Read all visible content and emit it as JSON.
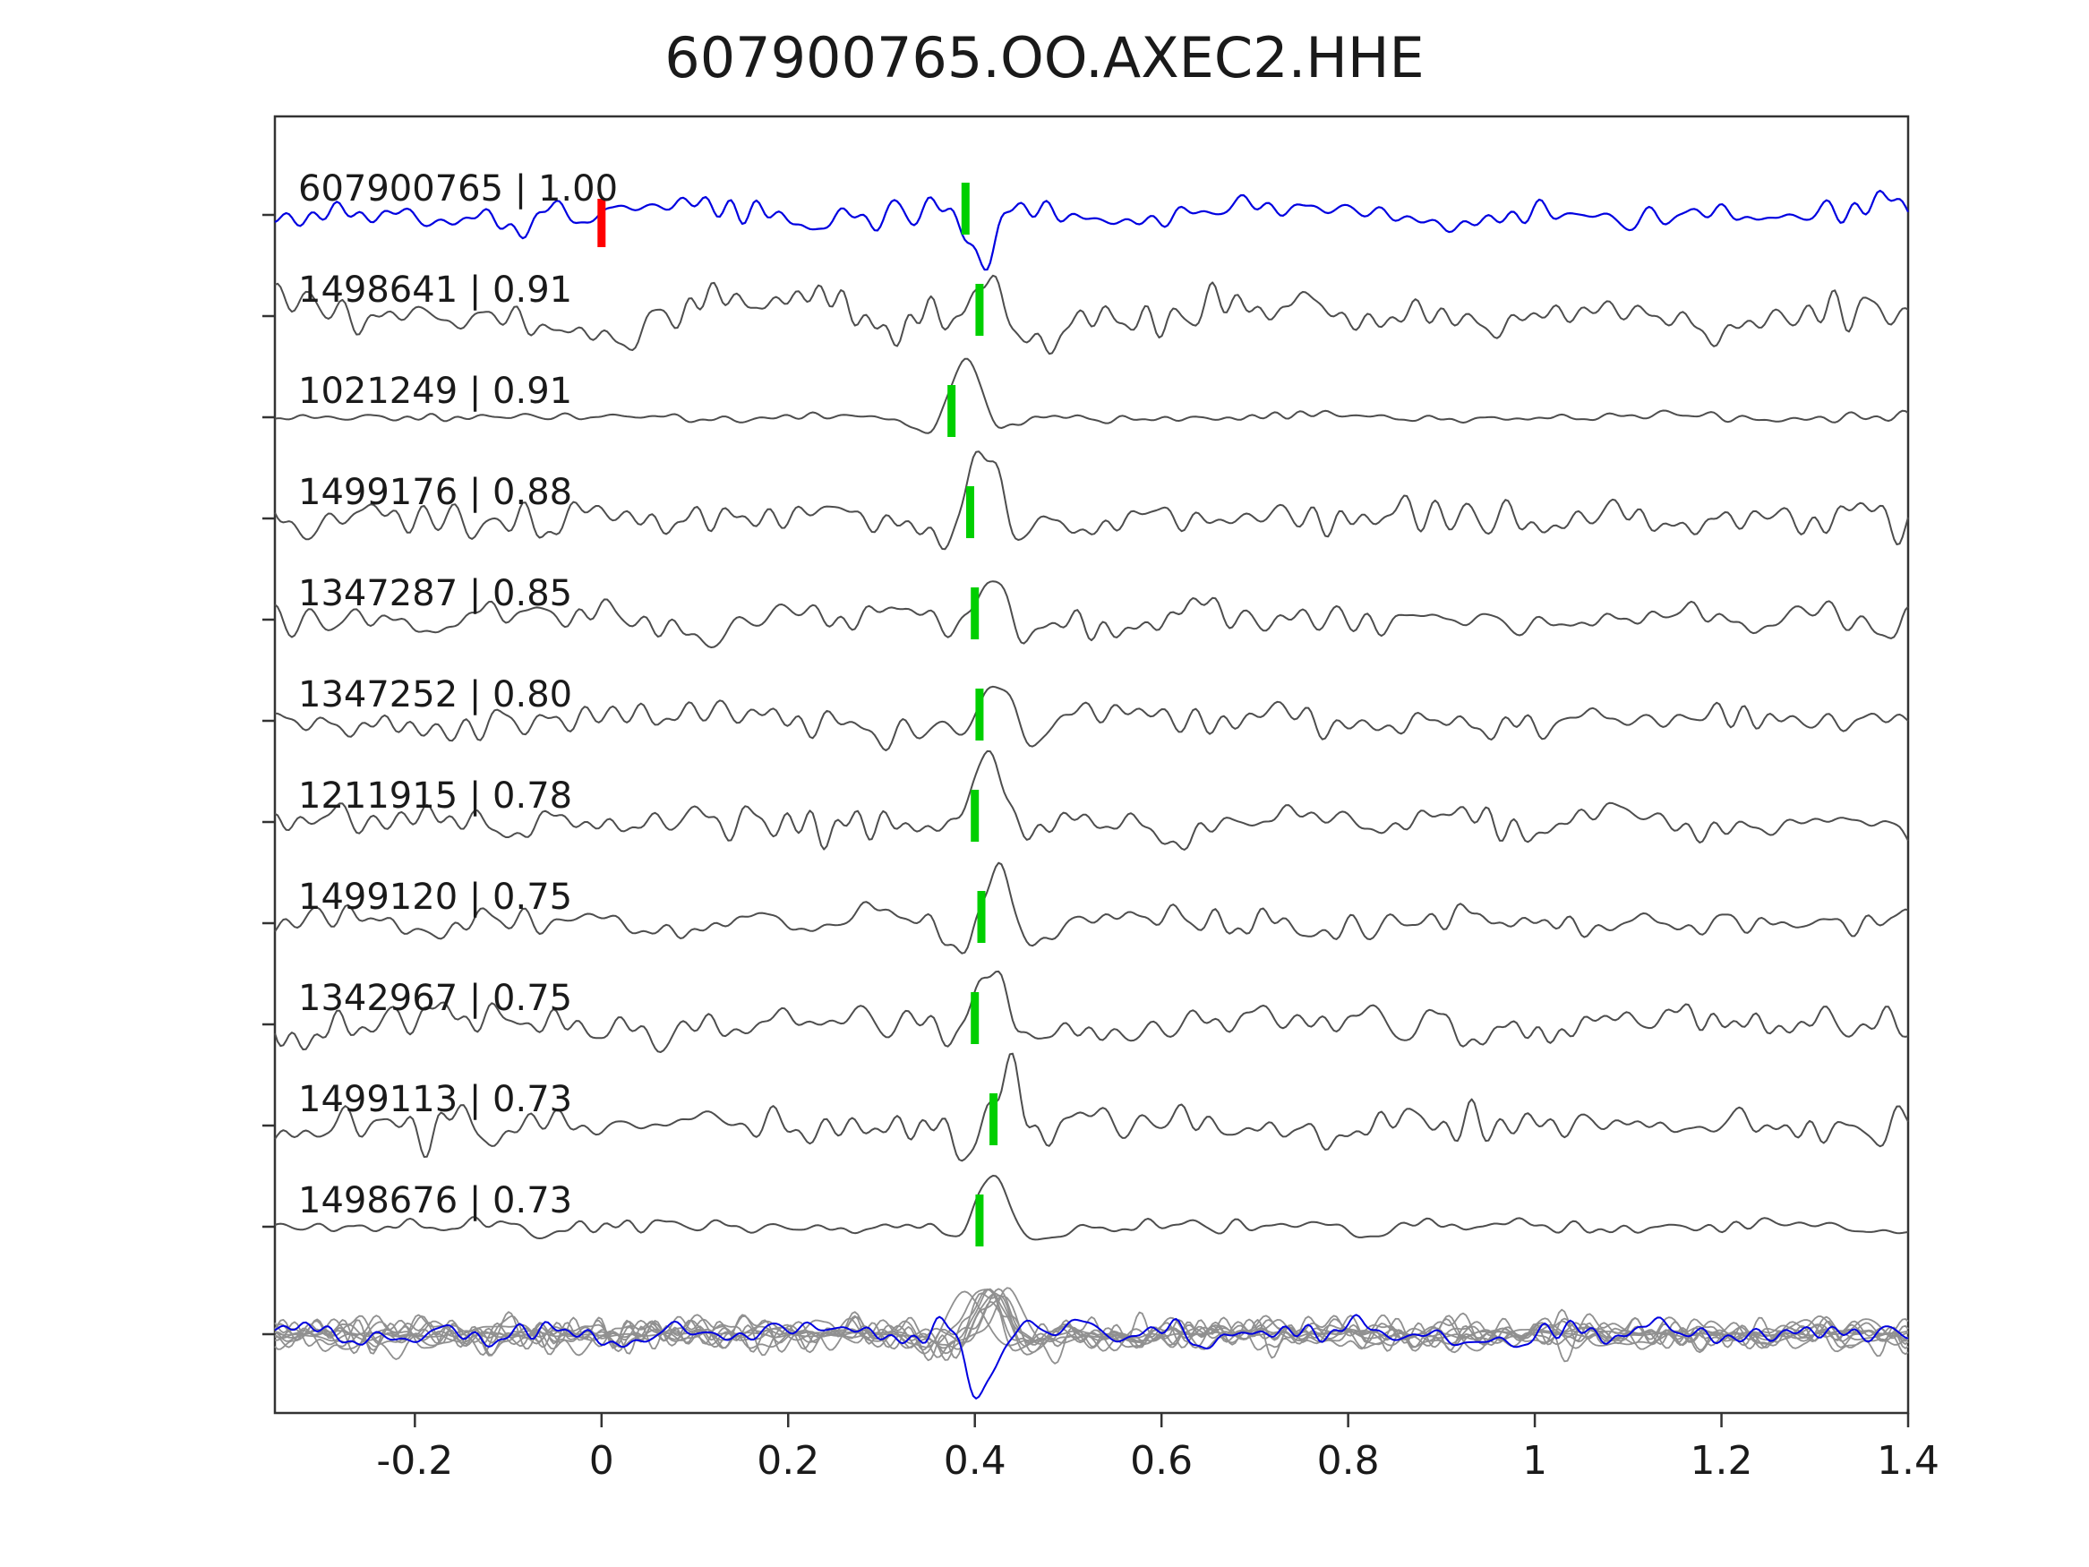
{
  "title": "607900765.OO.AXEC2.HHE",
  "chart_data": {
    "type": "line",
    "title": "607900765.OO.AXEC2.HHE",
    "xlabel": "",
    "ylabel": "",
    "xlim": [
      -0.35,
      1.4
    ],
    "grid": false,
    "legend": null,
    "x_ticks": [
      -0.2,
      0,
      0.2,
      0.4,
      0.6,
      0.8,
      1,
      1.2,
      1.4
    ],
    "x_tick_labels": [
      "-0.2",
      "0",
      "0.2",
      "0.4",
      "0.6",
      "0.8",
      "1",
      "1.2",
      "1.4"
    ],
    "description": "Template matching waveform comparison: top blue trace is the template event, gray traces are matched detections labeled 'event_id | correlation', green bars mark the pick time near 0.4 s, red bar marks 0 s on the template, bottom row overlays all traces.",
    "colors": {
      "template_trace": "#0000e0",
      "match_trace": "#4d4d4d",
      "overlay_gray": "#909090",
      "pick_marker": "#00cf00",
      "zero_marker": "#ff0000",
      "axis": "#333333",
      "text": "#1a1a1a"
    },
    "series": [
      {
        "id": "607900765",
        "corr": 1.0,
        "label": "607900765 | 1.00",
        "template": true,
        "pick_x": 0.39,
        "zero_marker_x": 0.0,
        "noise_amp": 27,
        "pulse_amp": -46,
        "seed": 11
      },
      {
        "id": "1498641",
        "corr": 0.91,
        "label": "1498641 | 0.91",
        "template": false,
        "pick_x": 0.405,
        "noise_amp": 38,
        "pulse_amp": 56,
        "seed": 22
      },
      {
        "id": "1021249",
        "corr": 0.91,
        "label": "1021249 | 0.91",
        "template": false,
        "pick_x": 0.375,
        "noise_amp": 8,
        "pulse_amp": 62,
        "seed": 33
      },
      {
        "id": "1499176",
        "corr": 0.88,
        "label": "1499176 | 0.88",
        "template": false,
        "pick_x": 0.395,
        "noise_amp": 29,
        "pulse_amp": 62,
        "seed": 44
      },
      {
        "id": "1347287",
        "corr": 0.85,
        "label": "1347287 | 0.85",
        "template": false,
        "pick_x": 0.4,
        "noise_amp": 31,
        "pulse_amp": 48,
        "seed": 55
      },
      {
        "id": "1347252",
        "corr": 0.8,
        "label": "1347252 | 0.80",
        "template": false,
        "pick_x": 0.405,
        "noise_amp": 33,
        "pulse_amp": 46,
        "seed": 66
      },
      {
        "id": "1211915",
        "corr": 0.78,
        "label": "1211915 | 0.78",
        "template": false,
        "pick_x": 0.4,
        "noise_amp": 31,
        "pulse_amp": 62,
        "seed": 77
      },
      {
        "id": "1499120",
        "corr": 0.75,
        "label": "1499120 | 0.75",
        "template": false,
        "pick_x": 0.407,
        "noise_amp": 25,
        "pulse_amp": 66,
        "seed": 88
      },
      {
        "id": "1342967",
        "corr": 0.75,
        "label": "1342967 | 0.75",
        "template": false,
        "pick_x": 0.4,
        "noise_amp": 31,
        "pulse_amp": 58,
        "seed": 99
      },
      {
        "id": "1499113",
        "corr": 0.73,
        "label": "1499113 | 0.73",
        "template": false,
        "pick_x": 0.42,
        "noise_amp": 35,
        "pulse_amp": 58,
        "seed": 110
      },
      {
        "id": "1498676",
        "corr": 0.73,
        "label": "1498676 | 0.73",
        "template": false,
        "pick_x": 0.405,
        "noise_amp": 13,
        "pulse_amp": 56,
        "seed": 121
      }
    ],
    "overlay": {
      "present": true,
      "scale": 0.8,
      "template_pulse_amp": -72,
      "gray_pulse_amp": 55,
      "seed_offset": 7
    }
  }
}
